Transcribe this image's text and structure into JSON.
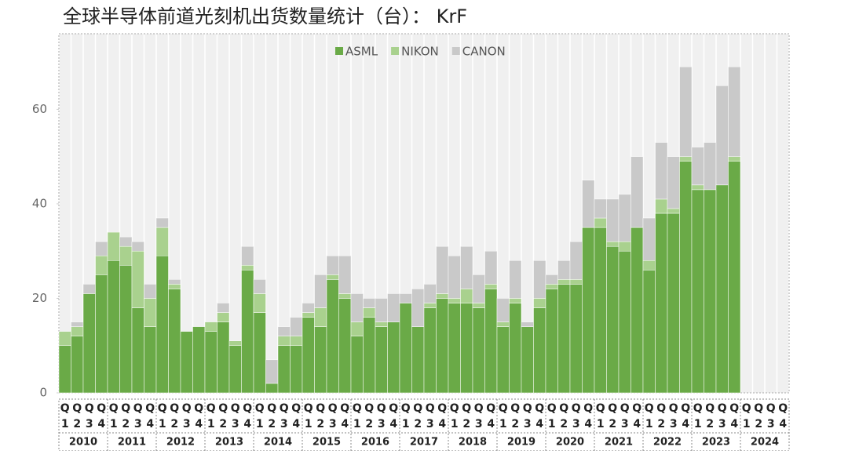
{
  "chart_data": {
    "type": "stacked_bar",
    "title": "全球半导体前道光刻机出货数量统计（台）： KrF",
    "quarter_prefix": "Q",
    "categories": [
      "1",
      "2",
      "3",
      "4",
      "1",
      "2",
      "3",
      "4",
      "1",
      "2",
      "3",
      "4",
      "1",
      "2",
      "3",
      "4",
      "1",
      "2",
      "3",
      "4",
      "1",
      "2",
      "3",
      "4",
      "1",
      "2",
      "3",
      "4",
      "1",
      "2",
      "3",
      "4",
      "1",
      "2",
      "3",
      "4",
      "1",
      "2",
      "3",
      "4",
      "1",
      "2",
      "3",
      "4",
      "1",
      "2",
      "3",
      "4",
      "1",
      "2",
      "3",
      "4",
      "1",
      "2",
      "3",
      "4",
      "1",
      "2",
      "3",
      "4"
    ],
    "years": [
      "2010",
      "2011",
      "2012",
      "2013",
      "2014",
      "2015",
      "2016",
      "2017",
      "2018",
      "2019",
      "2020",
      "2021",
      "2022",
      "2023",
      "2024"
    ],
    "series": [
      {
        "name": "ASML",
        "color": "#6aaa47",
        "values": [
          10,
          12,
          21,
          25,
          28,
          27,
          18,
          14,
          29,
          22,
          13,
          14,
          13,
          15,
          10,
          26,
          17,
          2,
          10,
          10,
          16,
          14,
          24,
          20,
          12,
          16,
          14,
          15,
          19,
          14,
          18,
          20,
          19,
          19,
          18,
          22,
          14,
          19,
          14,
          18,
          22,
          23,
          23,
          35,
          35,
          31,
          30,
          35,
          26,
          38,
          38,
          49,
          43,
          43,
          44,
          49,
          null,
          null,
          null,
          null
        ]
      },
      {
        "name": "NIKON",
        "color": "#a9d18e",
        "values": [
          3,
          2,
          0,
          4,
          6,
          4,
          12,
          6,
          6,
          1,
          0,
          0,
          2,
          2,
          1,
          1,
          4,
          0,
          2,
          2,
          1,
          4,
          1,
          1,
          3,
          2,
          1,
          0,
          0,
          0,
          1,
          1,
          1,
          3,
          1,
          1,
          1,
          1,
          0,
          2,
          1,
          1,
          1,
          0,
          2,
          1,
          2,
          0,
          2,
          3,
          1,
          1,
          1,
          0,
          0,
          1,
          null,
          null,
          null,
          null
        ]
      },
      {
        "name": "CANON",
        "color": "#c9c9c9",
        "values": [
          0,
          1,
          2,
          3,
          0,
          2,
          2,
          3,
          2,
          1,
          0,
          0,
          0,
          2,
          0,
          4,
          3,
          5,
          2,
          4,
          2,
          7,
          4,
          8,
          6,
          2,
          5,
          6,
          2,
          8,
          4,
          10,
          9,
          9,
          6,
          7,
          5,
          8,
          1,
          8,
          2,
          4,
          8,
          10,
          4,
          9,
          10,
          15,
          9,
          12,
          11,
          19,
          8,
          10,
          21,
          19,
          null,
          null,
          null,
          null
        ]
      }
    ],
    "ylim": [
      0,
      76
    ],
    "yticks": [
      0,
      20,
      40,
      60
    ]
  }
}
